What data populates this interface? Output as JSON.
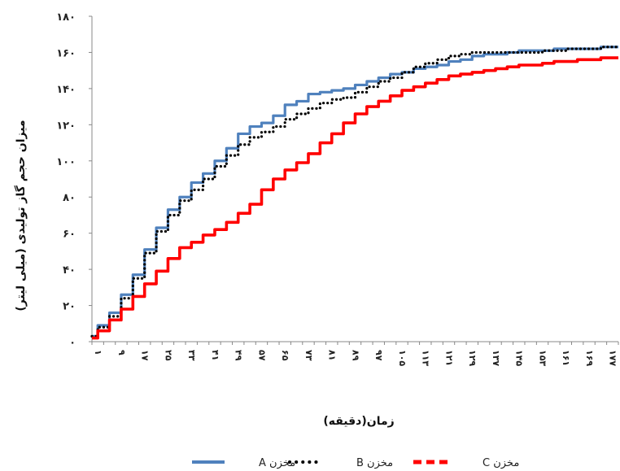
{
  "chart_data": {
    "type": "line",
    "title": "",
    "xlabel": "زمان(دقیقه)",
    "ylabel": "میزان حجم گاز تولیدی (میلی لیتر)",
    "ylim": [
      0,
      180
    ],
    "xlim": [
      1,
      181
    ],
    "y_ticks": [
      "۰",
      "۲۰",
      "۴۰",
      "۶۰",
      "۸۰",
      "۱۰۰",
      "۱۲۰",
      "۱۴۰",
      "۱۶۰",
      "۱۸۰"
    ],
    "x_tick_values": [
      1,
      9,
      17,
      25,
      33,
      41,
      49,
      57,
      65,
      73,
      81,
      89,
      97,
      105,
      113,
      121,
      129,
      137,
      145,
      153,
      161,
      169,
      177
    ],
    "x_tick_labels": [
      "۱",
      "۹",
      "۱۷",
      "۲۵",
      "۳۳",
      "۴۱",
      "۴۹",
      "۵۷",
      "۶۵",
      "۷۳",
      "۸۱",
      "۸۹",
      "۹۷",
      "۱۰۵",
      "۱۱۳",
      "۱۲۱",
      "۱۲۹",
      "۱۳۷",
      "۱۴۵",
      "۱۵۳",
      "۱۶۱",
      "۱۶۹",
      "۱۷۷"
    ],
    "grid": false,
    "legend_position": "bottom",
    "x": [
      1,
      5,
      9,
      13,
      17,
      21,
      25,
      29,
      33,
      37,
      41,
      45,
      49,
      53,
      57,
      61,
      65,
      69,
      73,
      77,
      81,
      85,
      89,
      93,
      97,
      101,
      105,
      109,
      113,
      117,
      121,
      125,
      129,
      133,
      137,
      141,
      145,
      149,
      153,
      157,
      161,
      165,
      169,
      173,
      177,
      181
    ],
    "series": [
      {
        "name": "مخزن A",
        "style": "solid",
        "color": "#4f81bd",
        "values": [
          3,
          9,
          16,
          26,
          37,
          51,
          63,
          73,
          80,
          88,
          93,
          100,
          107,
          115,
          119,
          121,
          125,
          131,
          133,
          137,
          138,
          139,
          140,
          142,
          144,
          146,
          148,
          149,
          151,
          152,
          153,
          155,
          156,
          158,
          159,
          159,
          160,
          161,
          161,
          161,
          162,
          162,
          162,
          162,
          163,
          163
        ]
      },
      {
        "name": "مخزن B",
        "style": "dotted",
        "color": "#000000",
        "values": [
          3,
          8,
          14,
          24,
          35,
          49,
          61,
          70,
          78,
          84,
          90,
          97,
          103,
          109,
          113,
          116,
          119,
          123,
          126,
          129,
          132,
          134,
          135,
          138,
          141,
          144,
          146,
          149,
          152,
          154,
          156,
          158,
          159,
          160,
          160,
          160,
          160,
          160,
          160,
          161,
          161,
          162,
          162,
          162,
          163,
          163
        ]
      },
      {
        "name": "مخزن C",
        "style": "dashed",
        "color": "#ff0000",
        "values": [
          2,
          6,
          12,
          18,
          25,
          32,
          39,
          46,
          52,
          55,
          59,
          62,
          66,
          71,
          76,
          84,
          90,
          95,
          99,
          104,
          110,
          115,
          121,
          126,
          130,
          133,
          136,
          139,
          141,
          143,
          145,
          147,
          148,
          149,
          150,
          151,
          152,
          153,
          153,
          154,
          155,
          155,
          156,
          156,
          157,
          157
        ]
      }
    ]
  }
}
